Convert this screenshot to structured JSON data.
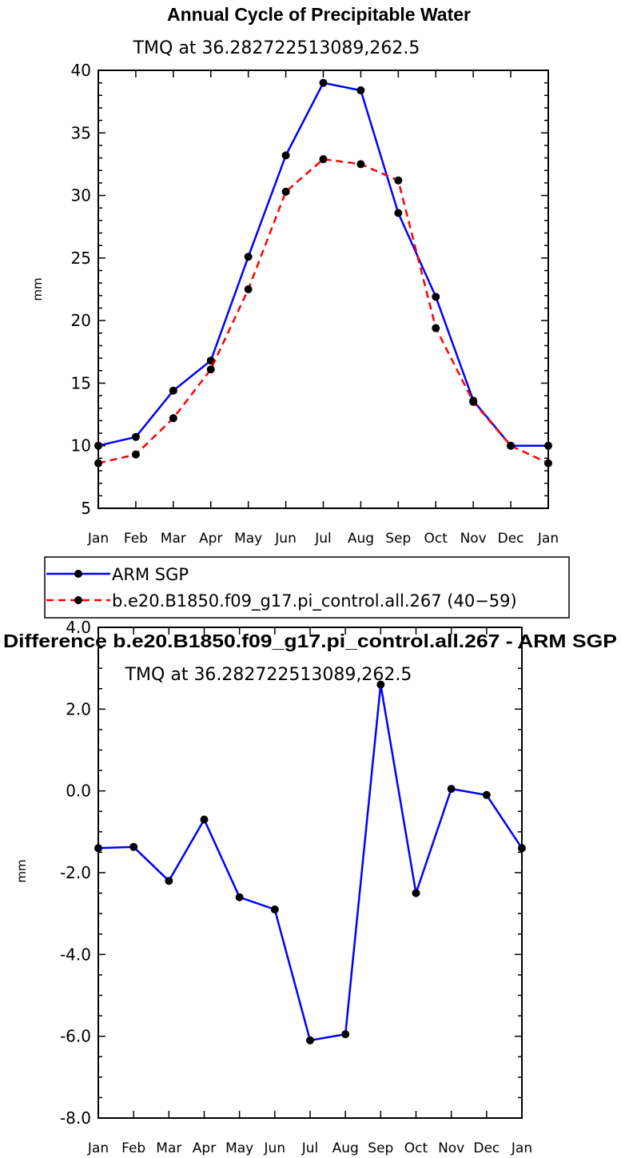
{
  "chart_data": [
    {
      "type": "line",
      "title": "Annual Cycle of Precipitable Water",
      "subtitle": "TMQ at 36.282722513089,262.5",
      "xlabel": "",
      "ylabel": "mm",
      "categories": [
        "Jan",
        "Feb",
        "Mar",
        "Apr",
        "May",
        "Jun",
        "Jul",
        "Aug",
        "Sep",
        "Oct",
        "Nov",
        "Dec",
        "Jan"
      ],
      "ylim": [
        5,
        40
      ],
      "yticks": [
        "5",
        "10",
        "15",
        "20",
        "25",
        "30",
        "35",
        "40"
      ],
      "series": [
        {
          "name": "ARM SGP",
          "color": "#0000ff",
          "dash": "solid",
          "values": [
            10.0,
            10.7,
            14.4,
            16.8,
            25.1,
            33.2,
            39.0,
            38.4,
            28.6,
            21.9,
            13.6,
            10.0,
            10.0
          ]
        },
        {
          "name": "b.e20.B1850.f09_g17.pi_control.all.267 (40−59)",
          "color": "#ff0000",
          "dash": "dashed",
          "values": [
            8.6,
            9.3,
            12.2,
            16.1,
            22.5,
            30.3,
            32.9,
            32.5,
            31.2,
            19.4,
            13.5,
            10.0,
            8.6
          ]
        }
      ]
    },
    {
      "type": "line",
      "title": "Difference b.e20.B1850.f09_g17.pi_control.all.267 - ARM SGP",
      "subtitle": "TMQ at 36.282722513089,262.5",
      "xlabel": "",
      "ylabel": "mm",
      "categories": [
        "Jan",
        "Feb",
        "Mar",
        "Apr",
        "May",
        "Jun",
        "Jul",
        "Aug",
        "Sep",
        "Oct",
        "Nov",
        "Dec",
        "Jan"
      ],
      "ylim": [
        -8,
        4
      ],
      "yticks": [
        "-8.0",
        "-6.0",
        "-4.0",
        "-2.0",
        "0.0",
        "2.0",
        "4.0"
      ],
      "series": [
        {
          "name": "Difference",
          "color": "#0000ff",
          "dash": "solid",
          "values": [
            -1.4,
            -1.37,
            -2.2,
            -0.7,
            -2.6,
            -2.9,
            -6.1,
            -5.95,
            2.6,
            -2.5,
            0.05,
            -0.1,
            -1.4
          ]
        }
      ]
    }
  ]
}
